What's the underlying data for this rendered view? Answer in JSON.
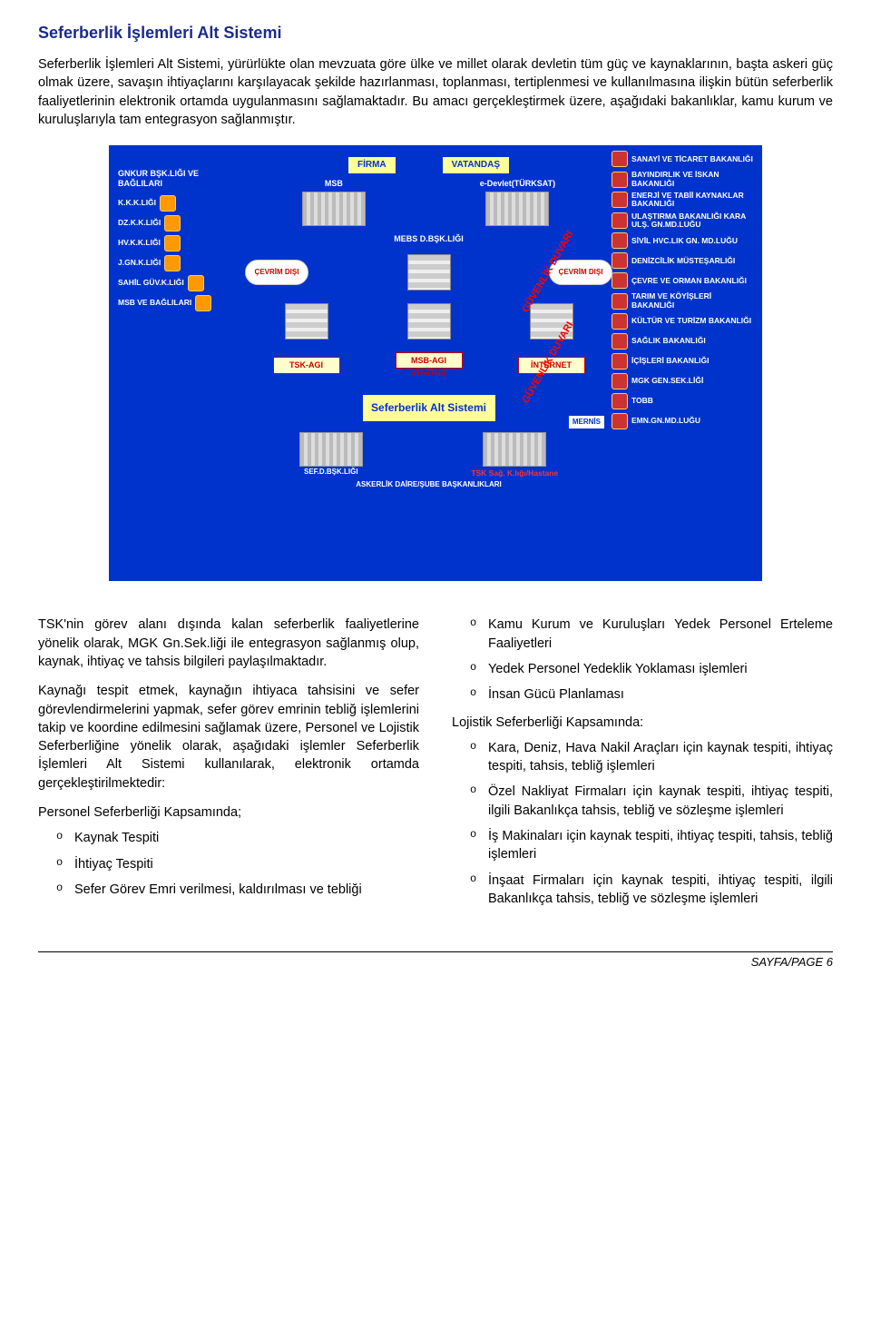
{
  "title": "Seferberlik İşlemleri Alt Sistemi",
  "intro": "Seferberlik İşlemleri Alt Sistemi, yürürlükte olan mevzuata göre ülke ve millet olarak devletin tüm güç ve kaynaklarının, başta askeri güç olmak üzere, savaşın ihtiyaçlarını karşılayacak şekilde hazırlanması, toplanması, tertiplenmesi ve kullanılmasına ilişkin bütün seferberlik faaliyetlerinin elektronik ortamda uygulanmasını sağlamaktadır. Bu amacı gerçekleştirmek üzere, aşağıdaki bakanlıklar, kamu kurum ve kuruluşlarıyla tam entegrasyon sağlanmıştır.",
  "diagram": {
    "bg_color": "#0033cc",
    "left_header": "GNKUR BŞK.LIĞI VE BAĞLILARI",
    "left_items": [
      "K.K.K.LIĞI",
      "DZ.K.K.LIĞI",
      "HV.K.K.LIĞI",
      "J.GN.K.LIĞI",
      "SAHİL GÜV.K.LIĞI",
      "MSB VE BAĞLILARI"
    ],
    "right_items": [
      "SANAYİ VE TİCARET BAKANLIĞI",
      "BAYINDIRLIK VE İSKAN BAKANLIĞI",
      "ENERJİ VE TABİİ KAYNAKLAR BAKANLIĞI",
      "ULAŞTIRMA BAKANLIĞI KARA ULŞ. GN.MD.LUĞU",
      "SİVİL HVC.LIK GN. MD.LUĞU",
      "DENİZCİLİK MÜSTEŞARLIĞI",
      "ÇEVRE VE ORMAN BAKANLIĞI",
      "TARIM VE KÖYİŞLERİ BAKANLIĞI",
      "KÜLTÜR VE TURİZM BAKANLIĞI",
      "SAĞLIK BAKANLIĞI",
      "İÇİŞLERİ BAKANLIĞI",
      "MGK GEN.SEK.LİĞİ",
      "TOBB",
      "EMN.GN.MD.LUĞU"
    ],
    "top_firma": "FİRMA",
    "top_vatandas": "VATANDAŞ",
    "msb": "MSB",
    "edevlet": "e-Devlet(TÜRKSAT)",
    "mebs": "MEBS D.BŞK.LIĞI",
    "cevrim": "ÇEVRİM DIŞI",
    "tsk_agi": "TSK-AGI",
    "msb_agi": "MSB-AGI",
    "internet": "İNTERNET",
    "ozel_hat": "(Özel Hat)",
    "seferberlik_box": "Seferberlik Alt Sistemi",
    "mernis": "MERNİS",
    "sef": "SEF.D.BŞK.LIĞI",
    "tsk_sag": "TSK Sağ. K.lığı/Hastane",
    "asker": "ASKERLİK DAİRE/ŞUBE BAŞKANLIKLARI",
    "guvenlik": "GÜVENLİK DUVARI"
  },
  "left_col": {
    "p1": "TSK'nin görev alanı dışında kalan seferberlik faaliyetlerine yönelik olarak, MGK Gn.Sek.liği ile entegrasyon sağlanmış olup, kaynak, ihtiyaç ve tahsis bilgileri paylaşılmaktadır.",
    "p2": "Kaynağı tespit etmek, kaynağın ihtiyaca tahsisini ve sefer görevlendirmelerini yapmak, sefer görev emrinin tebliğ işlemlerini takip ve koordine edilmesini sağlamak üzere, Personel ve Lojistik Seferberliğine yönelik olarak, aşağıdaki işlemler Seferberlik İşlemleri Alt Sistemi kullanılarak, elektronik ortamda gerçekleştirilmektedir:",
    "sub1": "Personel Seferberliği Kapsamında;",
    "items1": [
      "Kaynak Tespiti",
      "İhtiyaç Tespiti",
      "Sefer Görev Emri verilmesi, kaldırılması ve tebliği"
    ]
  },
  "right_col": {
    "items_top": [
      "Kamu Kurum ve Kuruluşları Yedek Personel Erteleme Faaliyetleri",
      "Yedek Personel Yedeklik Yoklaması işlemleri",
      "İnsan Gücü Planlaması"
    ],
    "sub2": "Lojistik Seferberliği Kapsamında:",
    "items_bottom": [
      "Kara, Deniz, Hava Nakil Araçları için kaynak tespiti, ihtiyaç tespiti, tahsis, tebliğ işlemleri",
      "Özel Nakliyat Firmaları için kaynak tespiti, ihtiyaç tespiti, ilgili Bakanlıkça tahsis, tebliğ ve sözleşme işlemleri",
      "İş Makinaları için kaynak tespiti, ihtiyaç tespiti, tahsis, tebliğ işlemleri",
      "İnşaat Firmaları için kaynak tespiti, ihtiyaç tespiti, ilgili Bakanlıkça tahsis, tebliğ ve sözleşme işlemleri"
    ]
  },
  "footer": "SAYFA/PAGE 6"
}
